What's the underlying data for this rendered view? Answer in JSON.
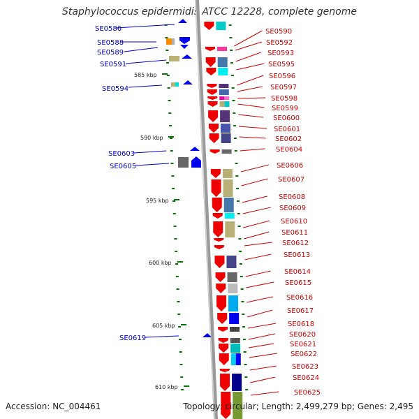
{
  "title": "Staphylococcus epidermidis ATCC 12228, complete genome",
  "footer": {
    "accession": "Accession: NC_004461",
    "stats": "Topology: circular; Length: 2,499,279 bp; Genes: 2,495"
  },
  "scale": {
    "ticks": [
      "585 kbp",
      "590 kbp",
      "595 kbp",
      "600 kbp",
      "605 kbp",
      "610 kbp"
    ]
  },
  "colors": {
    "forward_gene": "#0000ee",
    "reverse_gene": "#ee0000",
    "backbone": "#9a9a9a",
    "tick": "#007700"
  },
  "forward_genes": [
    "SE0586",
    "SE0588",
    "SE0589",
    "SE0591",
    "SE0594",
    "SE0603",
    "SE0605",
    "SE0619"
  ],
  "reverse_genes": [
    "SE0590",
    "SE0592",
    "SE0593",
    "SE0595",
    "SE0596",
    "SE0597",
    "SE0598",
    "SE0599",
    "SE0600",
    "SE0601",
    "SE0602",
    "SE0604",
    "SE0606",
    "SE0607",
    "SE0608",
    "SE0609",
    "SE0610",
    "SE0611",
    "SE0612",
    "SE0613",
    "SE0614",
    "SE0615",
    "SE0616",
    "SE0617",
    "SE0618",
    "SE0620",
    "SE0621",
    "SE0622",
    "SE0623",
    "SE0624",
    "SE0625"
  ]
}
